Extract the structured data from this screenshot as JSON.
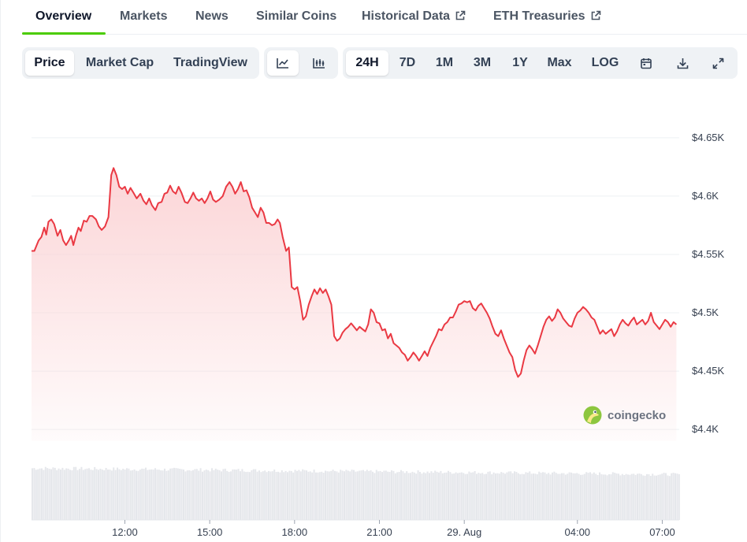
{
  "tabs": [
    {
      "label": "Overview",
      "active": true
    },
    {
      "label": "Markets"
    },
    {
      "label": "News"
    },
    {
      "label": "Similar Coins"
    },
    {
      "label": "Historical Data",
      "icon": "external-link-icon"
    },
    {
      "label": "ETH Treasuries",
      "icon": "external-link-icon"
    }
  ],
  "toolbar": {
    "data_type": {
      "options": [
        "Price",
        "Market Cap",
        "TradingView"
      ],
      "selected": "Price"
    },
    "chart_style": {
      "options": [
        "line-chart-icon",
        "candlestick-chart-icon"
      ],
      "selected": "line-chart-icon"
    },
    "ranges": {
      "options": [
        "24H",
        "7D",
        "1M",
        "3M",
        "1Y",
        "Max"
      ],
      "selected": "24H"
    },
    "log_label": "LOG",
    "tools": [
      "calendar-icon",
      "download-icon",
      "expand-icon"
    ]
  },
  "colors": {
    "accent": "#4bcc00",
    "line": "#ea3943",
    "fill_top": "#fbd3d5",
    "volume": "#e5e7eb"
  },
  "watermark": "coingecko",
  "chart_data": {
    "type": "area",
    "title": "",
    "xlabel": "",
    "ylabel": "",
    "ylim": [
      4390,
      4660
    ],
    "y_ticks": [
      "$4.65K",
      "$4.6K",
      "$4.55K",
      "$4.5K",
      "$4.45K",
      "$4.4K"
    ],
    "y_tick_values": [
      4650,
      4600,
      4550,
      4500,
      4450,
      4400
    ],
    "x_ticks": [
      "12:00",
      "15:00",
      "18:00",
      "21:00",
      "29. Aug",
      "04:00",
      "07:00"
    ],
    "x_tick_hours": [
      12,
      15,
      18,
      21,
      24,
      28,
      31
    ],
    "xlim_hours": [
      8.7,
      31.6
    ],
    "grid": true,
    "series": [
      {
        "points": [
          [
            8.7,
            4553
          ],
          [
            8.8,
            4553
          ],
          [
            8.95,
            4562
          ],
          [
            9.05,
            4565
          ],
          [
            9.15,
            4573
          ],
          [
            9.22,
            4567
          ],
          [
            9.3,
            4578
          ],
          [
            9.4,
            4580
          ],
          [
            9.5,
            4576
          ],
          [
            9.62,
            4566
          ],
          [
            9.72,
            4571
          ],
          [
            9.82,
            4562
          ],
          [
            9.92,
            4558
          ],
          [
            10.02,
            4562
          ],
          [
            10.1,
            4566
          ],
          [
            10.18,
            4558
          ],
          [
            10.28,
            4567
          ],
          [
            10.36,
            4573
          ],
          [
            10.44,
            4570
          ],
          [
            10.55,
            4579
          ],
          [
            10.65,
            4578
          ],
          [
            10.75,
            4583
          ],
          [
            10.85,
            4583
          ],
          [
            10.98,
            4580
          ],
          [
            11.08,
            4574
          ],
          [
            11.18,
            4571
          ],
          [
            11.3,
            4574
          ],
          [
            11.42,
            4582
          ],
          [
            11.52,
            4618
          ],
          [
            11.6,
            4624
          ],
          [
            11.7,
            4618
          ],
          [
            11.8,
            4608
          ],
          [
            11.9,
            4606
          ],
          [
            12.0,
            4608
          ],
          [
            12.1,
            4602
          ],
          [
            12.2,
            4607
          ],
          [
            12.3,
            4603
          ],
          [
            12.42,
            4598
          ],
          [
            12.55,
            4602
          ],
          [
            12.66,
            4596
          ],
          [
            12.76,
            4593
          ],
          [
            12.86,
            4598
          ],
          [
            12.96,
            4592
          ],
          [
            13.08,
            4588
          ],
          [
            13.18,
            4594
          ],
          [
            13.3,
            4595
          ],
          [
            13.4,
            4602
          ],
          [
            13.5,
            4603
          ],
          [
            13.6,
            4609
          ],
          [
            13.7,
            4604
          ],
          [
            13.8,
            4602
          ],
          [
            13.9,
            4608
          ],
          [
            14.0,
            4603
          ],
          [
            14.12,
            4595
          ],
          [
            14.22,
            4594
          ],
          [
            14.32,
            4598
          ],
          [
            14.42,
            4603
          ],
          [
            14.52,
            4598
          ],
          [
            14.62,
            4596
          ],
          [
            14.72,
            4598
          ],
          [
            14.82,
            4594
          ],
          [
            14.92,
            4598
          ],
          [
            15.02,
            4604
          ],
          [
            15.12,
            4597
          ],
          [
            15.22,
            4595
          ],
          [
            15.34,
            4597
          ],
          [
            15.46,
            4600
          ],
          [
            15.58,
            4608
          ],
          [
            15.7,
            4612
          ],
          [
            15.8,
            4608
          ],
          [
            15.9,
            4602
          ],
          [
            16.0,
            4606
          ],
          [
            16.1,
            4612
          ],
          [
            16.2,
            4604
          ],
          [
            16.3,
            4605
          ],
          [
            16.4,
            4599
          ],
          [
            16.5,
            4590
          ],
          [
            16.6,
            4586
          ],
          [
            16.7,
            4582
          ],
          [
            16.8,
            4590
          ],
          [
            16.9,
            4586
          ],
          [
            17.0,
            4577
          ],
          [
            17.1,
            4577
          ],
          [
            17.2,
            4575
          ],
          [
            17.3,
            4576
          ],
          [
            17.4,
            4580
          ],
          [
            17.48,
            4577
          ],
          [
            17.58,
            4565
          ],
          [
            17.7,
            4553
          ],
          [
            17.8,
            4556
          ],
          [
            17.9,
            4522
          ],
          [
            18.0,
            4520
          ],
          [
            18.1,
            4522
          ],
          [
            18.2,
            4510
          ],
          [
            18.3,
            4494
          ],
          [
            18.4,
            4497
          ],
          [
            18.5,
            4507
          ],
          [
            18.6,
            4514
          ],
          [
            18.7,
            4520
          ],
          [
            18.8,
            4516
          ],
          [
            18.9,
            4521
          ],
          [
            19.0,
            4517
          ],
          [
            19.1,
            4520
          ],
          [
            19.2,
            4514
          ],
          [
            19.3,
            4507
          ],
          [
            19.4,
            4480
          ],
          [
            19.5,
            4476
          ],
          [
            19.6,
            4478
          ],
          [
            19.7,
            4483
          ],
          [
            19.8,
            4486
          ],
          [
            19.9,
            4488
          ],
          [
            20.0,
            4491
          ],
          [
            20.1,
            4488
          ],
          [
            20.2,
            4485
          ],
          [
            20.3,
            4488
          ],
          [
            20.4,
            4486
          ],
          [
            20.5,
            4484
          ],
          [
            20.6,
            4490
          ],
          [
            20.7,
            4503
          ],
          [
            20.8,
            4500
          ],
          [
            20.9,
            4492
          ],
          [
            21.0,
            4491
          ],
          [
            21.1,
            4485
          ],
          [
            21.2,
            4486
          ],
          [
            21.3,
            4478
          ],
          [
            21.4,
            4482
          ],
          [
            21.5,
            4474
          ],
          [
            21.6,
            4472
          ],
          [
            21.7,
            4470
          ],
          [
            21.8,
            4466
          ],
          [
            21.9,
            4464
          ],
          [
            22.0,
            4459
          ],
          [
            22.1,
            4462
          ],
          [
            22.2,
            4466
          ],
          [
            22.3,
            4463
          ],
          [
            22.4,
            4459
          ],
          [
            22.5,
            4463
          ],
          [
            22.6,
            4467
          ],
          [
            22.7,
            4463
          ],
          [
            22.8,
            4470
          ],
          [
            22.9,
            4475
          ],
          [
            23.0,
            4480
          ],
          [
            23.1,
            4486
          ],
          [
            23.2,
            4485
          ],
          [
            23.3,
            4490
          ],
          [
            23.4,
            4492
          ],
          [
            23.5,
            4496
          ],
          [
            23.6,
            4496
          ],
          [
            23.7,
            4501
          ],
          [
            23.8,
            4507
          ],
          [
            23.9,
            4508
          ],
          [
            24.0,
            4510
          ],
          [
            24.1,
            4509
          ],
          [
            24.2,
            4510
          ],
          [
            24.3,
            4504
          ],
          [
            24.4,
            4502
          ],
          [
            24.5,
            4506
          ],
          [
            24.6,
            4508
          ],
          [
            24.7,
            4504
          ],
          [
            24.8,
            4500
          ],
          [
            24.9,
            4495
          ],
          [
            25.0,
            4488
          ],
          [
            25.1,
            4482
          ],
          [
            25.2,
            4480
          ],
          [
            25.3,
            4485
          ],
          [
            25.4,
            4478
          ],
          [
            25.5,
            4472
          ],
          [
            25.6,
            4466
          ],
          [
            25.7,
            4462
          ],
          [
            25.8,
            4451
          ],
          [
            25.9,
            4445
          ],
          [
            26.0,
            4448
          ],
          [
            26.1,
            4459
          ],
          [
            26.2,
            4468
          ],
          [
            26.3,
            4472
          ],
          [
            26.4,
            4469
          ],
          [
            26.5,
            4465
          ],
          [
            26.6,
            4472
          ],
          [
            26.7,
            4480
          ],
          [
            26.8,
            4488
          ],
          [
            26.9,
            4494
          ],
          [
            27.0,
            4497
          ],
          [
            27.1,
            4493
          ],
          [
            27.2,
            4496
          ],
          [
            27.3,
            4503
          ],
          [
            27.4,
            4500
          ],
          [
            27.5,
            4495
          ],
          [
            27.6,
            4492
          ],
          [
            27.7,
            4489
          ],
          [
            27.8,
            4488
          ],
          [
            27.9,
            4495
          ],
          [
            28.0,
            4500
          ],
          [
            28.1,
            4502
          ],
          [
            28.2,
            4505
          ],
          [
            28.3,
            4503
          ],
          [
            28.4,
            4500
          ],
          [
            28.5,
            4496
          ],
          [
            28.6,
            4494
          ],
          [
            28.7,
            4488
          ],
          [
            28.8,
            4482
          ],
          [
            28.9,
            4485
          ],
          [
            29.0,
            4482
          ],
          [
            29.1,
            4484
          ],
          [
            29.2,
            4486
          ],
          [
            29.3,
            4480
          ],
          [
            29.4,
            4484
          ],
          [
            29.5,
            4490
          ],
          [
            29.6,
            4494
          ],
          [
            29.7,
            4491
          ],
          [
            29.8,
            4489
          ],
          [
            29.9,
            4493
          ],
          [
            30.0,
            4496
          ],
          [
            30.1,
            4490
          ],
          [
            30.2,
            4492
          ],
          [
            30.3,
            4494
          ],
          [
            30.4,
            4490
          ],
          [
            30.5,
            4493
          ],
          [
            30.6,
            4500
          ],
          [
            30.7,
            4492
          ],
          [
            30.8,
            4489
          ],
          [
            30.9,
            4486
          ],
          [
            31.0,
            4490
          ],
          [
            31.1,
            4494
          ],
          [
            31.2,
            4492
          ],
          [
            31.3,
            4488
          ],
          [
            31.4,
            4492
          ],
          [
            31.5,
            4490
          ]
        ]
      }
    ]
  }
}
